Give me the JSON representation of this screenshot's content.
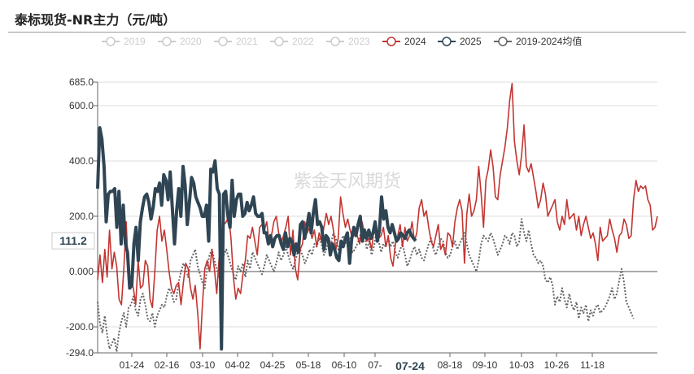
{
  "title": "泰标现货-NR主力（元/吨）",
  "watermark": "紫金天风期货",
  "chart_data": {
    "type": "line",
    "ylim": [
      -294.0,
      685.0
    ],
    "yticks": [
      "685.0",
      "600.0",
      "400.0",
      "200.0",
      "0.000",
      "-200.0",
      "-294.0"
    ],
    "ytick_values": [
      685,
      600,
      400,
      200,
      0,
      -200,
      -294
    ],
    "xticks": [
      "01-24",
      "02-16",
      "03-10",
      "04-02",
      "04-25",
      "05-18",
      "06-10",
      "07-",
      "07-24",
      "08-18",
      "09-10",
      "10-03",
      "10-26",
      "11-18"
    ],
    "cursor": {
      "x_label": "07-24",
      "y_label": "111.2"
    },
    "grid": "horizontal",
    "legend_position": "top-center",
    "series": [
      {
        "name": "2019",
        "color": "#cccccc",
        "active": false,
        "values": []
      },
      {
        "name": "2020",
        "color": "#cccccc",
        "active": false,
        "values": []
      },
      {
        "name": "2021",
        "color": "#cccccc",
        "active": false,
        "values": []
      },
      {
        "name": "2022",
        "color": "#cccccc",
        "active": false,
        "values": []
      },
      {
        "name": "2023",
        "color": "#cccccc",
        "active": false,
        "values": []
      },
      {
        "name": "2024",
        "color": "#c23531",
        "active": true,
        "values": [
          -30,
          60,
          -40,
          80,
          -20,
          150,
          10,
          70,
          20,
          -100,
          -120,
          10,
          180,
          -20,
          -30,
          -60,
          -120,
          40,
          -60,
          -50,
          40,
          20,
          -100,
          -130,
          0,
          150,
          200,
          110,
          150,
          80,
          0,
          -60,
          -80,
          -50,
          -40,
          -120,
          -40,
          30,
          10,
          -60,
          -100,
          -50,
          -150,
          -280,
          -120,
          10,
          40,
          0,
          80,
          10,
          -80,
          50,
          20,
          170,
          180,
          200,
          120,
          -20,
          -100,
          -60,
          -80,
          -10,
          40,
          130,
          120,
          160,
          110,
          60,
          160,
          170,
          150,
          180,
          100,
          130,
          180,
          200,
          140,
          100,
          130,
          160,
          200,
          60,
          150,
          10,
          -30,
          80,
          100,
          180,
          140,
          160,
          120,
          150,
          90,
          140,
          110,
          160,
          210,
          170,
          200,
          150,
          80,
          120,
          270,
          210,
          160,
          190,
          150,
          120,
          140,
          130,
          100,
          180,
          140,
          110,
          120,
          80,
          150,
          130,
          120,
          130,
          160,
          90,
          130,
          50,
          20,
          100,
          130,
          170,
          90,
          160,
          110,
          130,
          180,
          110,
          140,
          230,
          260,
          200,
          220,
          160,
          110,
          90,
          130,
          170,
          80,
          100,
          60,
          140,
          130,
          90,
          180,
          230,
          260,
          220,
          30,
          210,
          280,
          200,
          220,
          260,
          380,
          280,
          160,
          330,
          370,
          440,
          380,
          270,
          260,
          350,
          400,
          450,
          520,
          620,
          680,
          470,
          400,
          350,
          420,
          530,
          380,
          360,
          390,
          340,
          290,
          230,
          260,
          320,
          280,
          200,
          220,
          240,
          260,
          180,
          150,
          200,
          170,
          260,
          190,
          200,
          210,
          150,
          200,
          130,
          170,
          200,
          160,
          120,
          140,
          100,
          40,
          160,
          110,
          120,
          130,
          190,
          150,
          120,
          70,
          130,
          140,
          190,
          170,
          120,
          130,
          260,
          330,
          290,
          310,
          300,
          310,
          260,
          240,
          150,
          160,
          200
        ]
      },
      {
        "name": "2025",
        "color": "#2f4554",
        "active": true,
        "values": [
          300,
          520,
          480,
          380,
          180,
          280,
          290,
          290,
          300,
          160,
          290,
          100,
          240,
          100,
          70,
          -60,
          -50,
          100,
          160,
          40,
          180,
          230,
          270,
          280,
          250,
          190,
          230,
          300,
          290,
          320,
          240,
          350,
          330,
          260,
          360,
          230,
          100,
          220,
          300,
          200,
          380,
          310,
          170,
          250,
          340,
          320,
          270,
          250,
          230,
          200,
          200,
          240,
          110,
          370,
          360,
          400,
          300,
          280,
          -280,
          280,
          290,
          200,
          160,
          330,
          200,
          260,
          280,
          280,
          200,
          210,
          250,
          220,
          240,
          270,
          210,
          200,
          200,
          210,
          140,
          140,
          100,
          130,
          90,
          120,
          130,
          130,
          100,
          80,
          140,
          90,
          120,
          110,
          60,
          100,
          70,
          170,
          180,
          120,
          160,
          210,
          140,
          210,
          260,
          170,
          180,
          160,
          80,
          130,
          120,
          60,
          100,
          80,
          50,
          40,
          110,
          90,
          120,
          140,
          30,
          120,
          160,
          130,
          170,
          200,
          110,
          150,
          120,
          150,
          120,
          140,
          180,
          110,
          150,
          270,
          190,
          220,
          160,
          140,
          170,
          140,
          110,
          120,
          140,
          130,
          120,
          140,
          150,
          130,
          120,
          111.2
        ]
      },
      {
        "name": "2019-2024均值",
        "color": "#666666",
        "active": true,
        "values": [
          -110,
          -190,
          -220,
          -160,
          -230,
          -280,
          -260,
          -240,
          -290,
          -220,
          -180,
          -150,
          -200,
          -130,
          -120,
          -90,
          -140,
          -160,
          -100,
          -80,
          -120,
          -170,
          -180,
          -150,
          -200,
          -160,
          -140,
          -120,
          -130,
          -90,
          -60,
          -80,
          -110,
          -100,
          -40,
          0,
          30,
          10,
          -20,
          40,
          60,
          80,
          20,
          -10,
          -40,
          -60,
          20,
          60,
          80,
          40,
          10,
          -20,
          40,
          60,
          80,
          50,
          20,
          -10,
          -30,
          20,
          0,
          30,
          -20,
          40,
          10,
          70,
          50,
          30,
          10,
          -10,
          20,
          60,
          40,
          20,
          0,
          30,
          70,
          40,
          60,
          90,
          60,
          30,
          10,
          40,
          70,
          80,
          60,
          30,
          50,
          80,
          60,
          100,
          90,
          120,
          100,
          60,
          80,
          120,
          100,
          140,
          120,
          80,
          100,
          130,
          110,
          90,
          120,
          70,
          80,
          100,
          120,
          160,
          140,
          80,
          110,
          60,
          90,
          140,
          110,
          70,
          100,
          90,
          120,
          90,
          110,
          70,
          50,
          80,
          100,
          60,
          20,
          40,
          70,
          90,
          60,
          80,
          50,
          40,
          70,
          100,
          120,
          80,
          60,
          90,
          120,
          110,
          70,
          50,
          60,
          90,
          110,
          80,
          100,
          120,
          140,
          100,
          60,
          40,
          20,
          0,
          40,
          100,
          130,
          120,
          110,
          140,
          120,
          90,
          60,
          80,
          100,
          130,
          120,
          100,
          140,
          130,
          90,
          110,
          190,
          140,
          110,
          150,
          100,
          60,
          50,
          30,
          40,
          20,
          -30,
          -40,
          -20,
          -50,
          -120,
          -90,
          -110,
          -60,
          -100,
          -130,
          -80,
          -120,
          -140,
          -110,
          -170,
          -130,
          -150,
          -120,
          -180,
          -140,
          -160,
          -130,
          -120,
          -150,
          -140,
          -130,
          -110,
          -90,
          -60,
          -100,
          -80,
          -30,
          10,
          -40,
          -110,
          -130,
          -150,
          -170
        ]
      }
    ]
  }
}
